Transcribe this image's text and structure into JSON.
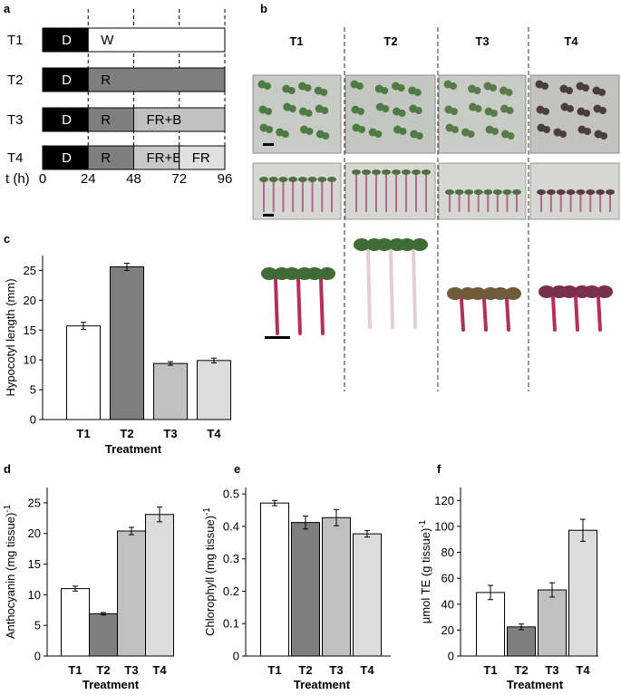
{
  "panel_labels": {
    "a": "a",
    "b": "b",
    "c": "c",
    "d": "d",
    "e": "e",
    "f": "f"
  },
  "timeline": {
    "rows": [
      {
        "label": "T1",
        "segments": [
          {
            "from": 0,
            "to": 24,
            "text": "D",
            "color": "#000000",
            "text_color": "#ffffff"
          },
          {
            "from": 24,
            "to": 96,
            "text": "W",
            "color": "#ffffff",
            "text_color": "#000000"
          }
        ]
      },
      {
        "label": "T2",
        "segments": [
          {
            "from": 0,
            "to": 24,
            "text": "D",
            "color": "#000000",
            "text_color": "#ffffff"
          },
          {
            "from": 24,
            "to": 96,
            "text": "R",
            "color": "#7f7f7f",
            "text_color": "#000000"
          }
        ]
      },
      {
        "label": "T3",
        "segments": [
          {
            "from": 0,
            "to": 24,
            "text": "D",
            "color": "#000000",
            "text_color": "#ffffff"
          },
          {
            "from": 24,
            "to": 48,
            "text": "R",
            "color": "#7f7f7f",
            "text_color": "#000000"
          },
          {
            "from": 48,
            "to": 96,
            "text": "FR+B",
            "color": "#c0c0c0",
            "text_color": "#000000"
          }
        ]
      },
      {
        "label": "T4",
        "segments": [
          {
            "from": 0,
            "to": 24,
            "text": "D",
            "color": "#000000",
            "text_color": "#ffffff"
          },
          {
            "from": 24,
            "to": 48,
            "text": "R",
            "color": "#7f7f7f",
            "text_color": "#000000"
          },
          {
            "from": 48,
            "to": 72,
            "text": "FR+B",
            "color": "#c8c8c8",
            "text_color": "#000000"
          },
          {
            "from": 72,
            "to": 96,
            "text": "FR",
            "color": "#e0e0e0",
            "text_color": "#000000"
          }
        ]
      }
    ],
    "axis_label": "t (h)",
    "ticks": [
      0,
      24,
      48,
      72,
      96
    ]
  },
  "photos": {
    "columns": [
      "T1",
      "T2",
      "T3",
      "T4"
    ]
  },
  "chart_data": [
    {
      "panel": "c",
      "type": "bar",
      "categories": [
        "T1",
        "T2",
        "T3",
        "T4"
      ],
      "values": [
        15.7,
        25.6,
        9.4,
        9.9
      ],
      "errors": [
        0.6,
        0.6,
        0.3,
        0.4
      ],
      "colors": [
        "#ffffff",
        "#7f7f7f",
        "#c0c0c0",
        "#dcdcdc"
      ],
      "xlabel": "Treatment",
      "ylabel": "Hypocotyl length (mm)",
      "ylim": [
        0,
        27.5
      ],
      "yticks": [
        0,
        5,
        10,
        15,
        20,
        25
      ]
    },
    {
      "panel": "d",
      "type": "bar",
      "categories": [
        "T1",
        "T2",
        "T3",
        "T4"
      ],
      "values": [
        11.0,
        6.9,
        20.4,
        23.1
      ],
      "errors": [
        0.4,
        0.2,
        0.6,
        1.2
      ],
      "colors": [
        "#ffffff",
        "#7f7f7f",
        "#c0c0c0",
        "#dcdcdc"
      ],
      "xlabel": "Treatment",
      "ylabel": "Anthocyanin (mg tissue)",
      "ylabel_sup": "-1",
      "ylim": [
        0,
        27.5
      ],
      "yticks": [
        0,
        5,
        10,
        15,
        20,
        25
      ]
    },
    {
      "panel": "e",
      "type": "bar",
      "categories": [
        "T1",
        "T2",
        "T3",
        "T4"
      ],
      "values": [
        0.472,
        0.412,
        0.427,
        0.377
      ],
      "errors": [
        0.008,
        0.02,
        0.025,
        0.01
      ],
      "colors": [
        "#ffffff",
        "#7f7f7f",
        "#c0c0c0",
        "#dcdcdc"
      ],
      "xlabel": "Treatment",
      "ylabel": "Chlorophyll (mg tissue)",
      "ylabel_sup": "-1",
      "ylim": [
        0,
        0.52
      ],
      "yticks": [
        0,
        0.1,
        0.2,
        0.3,
        0.4,
        0.5
      ]
    },
    {
      "panel": "f",
      "type": "bar",
      "categories": [
        "T1",
        "T2",
        "T3",
        "T4"
      ],
      "values": [
        49,
        22.5,
        51,
        97
      ],
      "errors": [
        5.5,
        2.2,
        5.5,
        8.5
      ],
      "colors": [
        "#ffffff",
        "#7f7f7f",
        "#c0c0c0",
        "#dcdcdc"
      ],
      "xlabel": "Treatment",
      "ylabel": "μmol TE (g tissue)",
      "ylabel_sup": "-1",
      "ylim": [
        0,
        130
      ],
      "yticks": [
        0,
        20,
        40,
        60,
        80,
        100,
        120
      ]
    }
  ]
}
